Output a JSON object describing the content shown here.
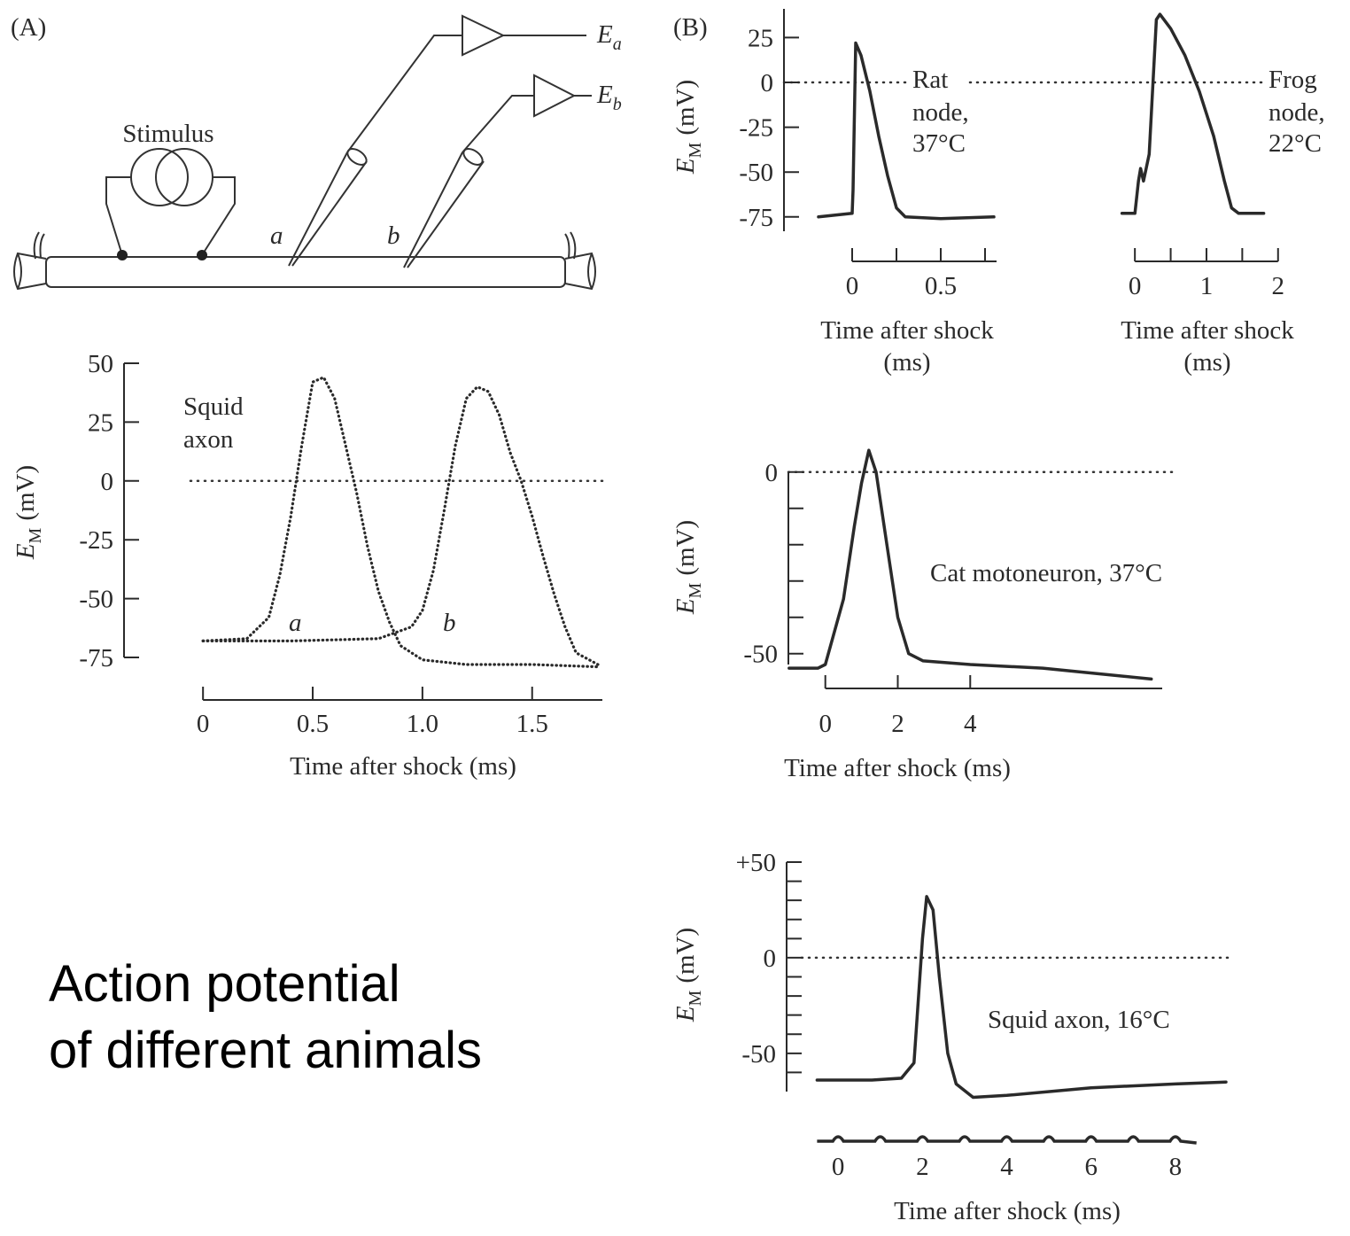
{
  "diagram": {
    "panel_a": "(A)",
    "panel_b": "(B)",
    "stimulus": "Stimulus",
    "site_a": "a",
    "site_b": "b",
    "electrode_a": {
      "symbol": "E",
      "subscript": "a"
    },
    "electrode_b": {
      "symbol": "E",
      "subscript": "b"
    }
  },
  "caption": [
    "Action potential",
    "of different animals"
  ],
  "chart_data": [
    {
      "type": "line",
      "annotation": [
        "Squid",
        "axon"
      ],
      "x_label": [
        "Time after shock (ms)"
      ],
      "y_label": {
        "symbol": "E",
        "subscript": "M",
        "unit": "(mV)"
      },
      "xlim": [
        -0.36,
        1.82
      ],
      "ylim": [
        -75,
        50
      ],
      "xticks": [
        0,
        0.5,
        {
          "value": 1,
          "label": "1.0"
        },
        1.5
      ],
      "yticks": [
        50,
        25,
        0,
        -25,
        -50,
        -75
      ],
      "hlines": [
        0
      ],
      "line_style": "dotted",
      "series": [
        {
          "name": "a",
          "color": "#2a2a2a",
          "x": [
            0,
            0.2,
            0.3,
            0.35,
            0.4,
            0.45,
            0.5,
            0.55,
            0.6,
            0.65,
            0.7,
            0.75,
            0.8,
            0.85,
            0.9,
            1.0,
            1.2,
            1.5,
            1.8
          ],
          "values": [
            -68,
            -67,
            -58,
            -40,
            -15,
            15,
            42,
            44,
            35,
            15,
            -5,
            -28,
            -47,
            -60,
            -70,
            -76,
            -78,
            -78,
            -79
          ]
        },
        {
          "name": "b",
          "color": "#2a2a2a",
          "x": [
            0,
            0.4,
            0.8,
            0.95,
            1.0,
            1.05,
            1.1,
            1.15,
            1.2,
            1.25,
            1.3,
            1.35,
            1.4,
            1.45,
            1.5,
            1.55,
            1.6,
            1.65,
            1.7,
            1.8
          ],
          "values": [
            -68,
            -68,
            -67,
            -62,
            -55,
            -38,
            -12,
            15,
            35,
            40,
            38,
            28,
            12,
            0,
            -15,
            -32,
            -48,
            -62,
            -73,
            -78
          ]
        }
      ]
    },
    {
      "type": "line",
      "annotation": [
        "Rat",
        "node,",
        "37°C"
      ],
      "x_label": [
        "Time after shock",
        "(ms)"
      ],
      "y_label": {
        "symbol": "E",
        "subscript": "M",
        "unit": "(mV)"
      },
      "xlim": [
        -0.385,
        0.815
      ],
      "ylim": [
        -83,
        41
      ],
      "xticks": [
        0,
        0.5
      ],
      "minor_xticks": [
        0.25,
        0.75
      ],
      "yticks": [
        25,
        0,
        -25,
        -50,
        -75
      ],
      "hlines": [
        0
      ],
      "series": [
        {
          "color": "#2a2a2a",
          "x": [
            -0.19,
            0,
            0.005,
            0.02,
            0.05,
            0.1,
            0.15,
            0.2,
            0.25,
            0.3,
            0.5,
            0.8
          ],
          "values": [
            -75,
            -73,
            -60,
            22,
            15,
            -5,
            -30,
            -52,
            -70,
            -75,
            -76,
            -75
          ]
        }
      ]
    },
    {
      "type": "line",
      "annotation": [
        "Frog",
        "node,",
        "22°C"
      ],
      "x_label": [
        "Time after shock",
        "(ms)"
      ],
      "xlim": [
        -0.2,
        1.78
      ],
      "ylim": [
        -83,
        41
      ],
      "xticks": [
        0,
        1,
        2
      ],
      "minor_xticks": [
        0.5,
        1.5
      ],
      "hlines": [
        0
      ],
      "series": [
        {
          "color": "#2a2a2a",
          "x": [
            -0.18,
            0,
            0.05,
            0.08,
            0.12,
            0.2,
            0.3,
            0.35,
            0.5,
            0.7,
            0.9,
            1.1,
            1.25,
            1.35,
            1.45,
            1.8
          ],
          "values": [
            -73,
            -73,
            -55,
            -48,
            -55,
            -40,
            35,
            38,
            30,
            15,
            -5,
            -30,
            -55,
            -70,
            -73,
            -73
          ]
        }
      ]
    },
    {
      "type": "line",
      "annotation": [
        "Cat motoneuron, 37°C"
      ],
      "x_label": [
        "Time after shock (ms)"
      ],
      "y_label": {
        "symbol": "E",
        "subscript": "M",
        "unit": "(mV)"
      },
      "xlim": [
        -1.02,
        9.3
      ],
      "ylim": [
        -53,
        8
      ],
      "xticks": [
        0,
        2,
        4
      ],
      "yticks": [
        0,
        -50
      ],
      "minor_yticks": [
        -10,
        -20,
        -30,
        -40
      ],
      "hlines": [
        0
      ],
      "series": [
        {
          "color": "#2a2a2a",
          "x": [
            -1,
            -0.2,
            0,
            0.5,
            0.8,
            1,
            1.2,
            1.4,
            1.7,
            2.0,
            2.3,
            2.7,
            4,
            6,
            9
          ],
          "values": [
            -54,
            -54,
            -53,
            -35,
            -15,
            -3,
            6,
            0,
            -20,
            -40,
            -50,
            -52,
            -53,
            -54,
            -57
          ]
        }
      ]
    },
    {
      "type": "line",
      "annotation": [
        "Squid axon, 16°C"
      ],
      "x_label": [
        "Time after shock (ms)"
      ],
      "y_label": {
        "symbol": "E",
        "subscript": "M",
        "unit": "(mV)"
      },
      "xlim": [
        -0.55,
        9.2
      ],
      "ylim": [
        -70,
        50
      ],
      "xticks": [
        0,
        2,
        4,
        6,
        8
      ],
      "yticks": [
        {
          "value": 50,
          "label": "+50"
        },
        0,
        -50
      ],
      "minor_yticks": [
        40,
        30,
        20,
        10,
        -10,
        -20,
        -30,
        -40,
        -60
      ],
      "hlines": [
        0
      ],
      "series": [
        {
          "color": "#2a2a2a",
          "x": [
            -0.5,
            0.8,
            1.5,
            1.8,
            2.0,
            2.1,
            2.25,
            2.4,
            2.6,
            2.8,
            3.2,
            4,
            6,
            8,
            9.2
          ],
          "values": [
            -64,
            -64,
            -63,
            -55,
            10,
            32,
            25,
            -10,
            -50,
            -66,
            -73,
            -72,
            -68,
            -66,
            -65
          ]
        }
      ]
    }
  ]
}
